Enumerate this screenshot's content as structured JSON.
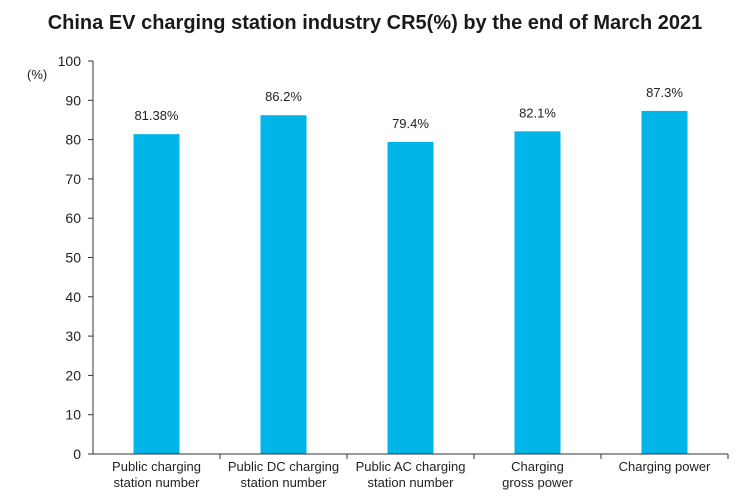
{
  "chart_data": {
    "type": "bar",
    "title": "China EV charging station industry CR5(%) by the end of March 2021",
    "ylabel": "(%)",
    "xlabel": "",
    "ylim": [
      0,
      100
    ],
    "yticks": [
      0,
      10,
      20,
      30,
      40,
      50,
      60,
      70,
      80,
      90,
      100
    ],
    "categories": [
      [
        "Public charging",
        "station number"
      ],
      [
        "Public DC charging",
        "station number"
      ],
      [
        "Public AC charging",
        "station number"
      ],
      [
        "Charging",
        "gross power"
      ],
      [
        "Charging power"
      ]
    ],
    "values": [
      81.38,
      86.2,
      79.4,
      82.1,
      87.3
    ],
    "data_labels": [
      "81.38%",
      "86.2%",
      "79.4%",
      "82.1%",
      "87.3%"
    ],
    "bar_color": "#00b5e8",
    "grid": false
  }
}
